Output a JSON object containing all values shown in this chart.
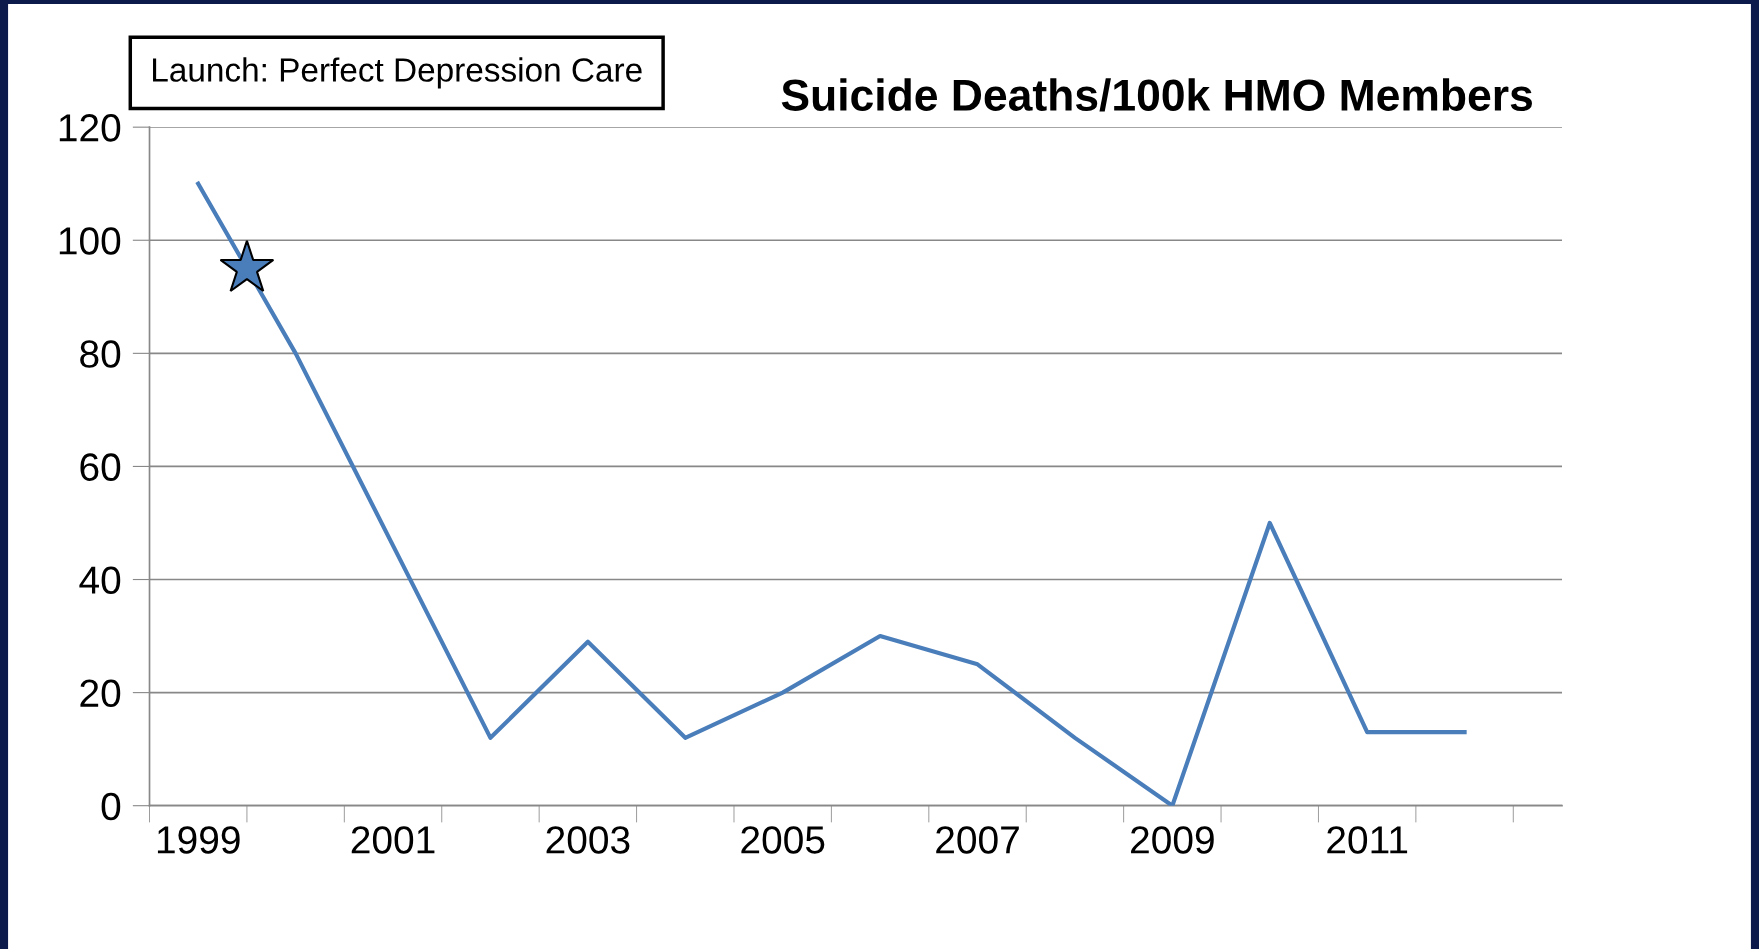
{
  "chart_data": {
    "type": "line",
    "title": "Suicide Deaths/100k HMO Members",
    "categories": [
      "1999",
      null,
      "2001",
      null,
      "2003",
      null,
      "2005",
      null,
      "2007",
      null,
      "2009",
      null,
      "2011",
      null
    ],
    "series": [
      {
        "color": "#4a7ebb",
        "values": [
          110,
          80,
          46,
          12,
          29,
          12,
          20,
          30,
          25,
          12,
          0,
          50,
          13,
          13
        ]
      }
    ],
    "ylim": [
      0,
      120
    ],
    "yticks": [
      0,
      20,
      40,
      60,
      80,
      100,
      120
    ],
    "grid": "y",
    "marker": "none",
    "line_style": "solid",
    "annotations": [
      "Launch: Perfect Depression Care"
    ]
  }
}
